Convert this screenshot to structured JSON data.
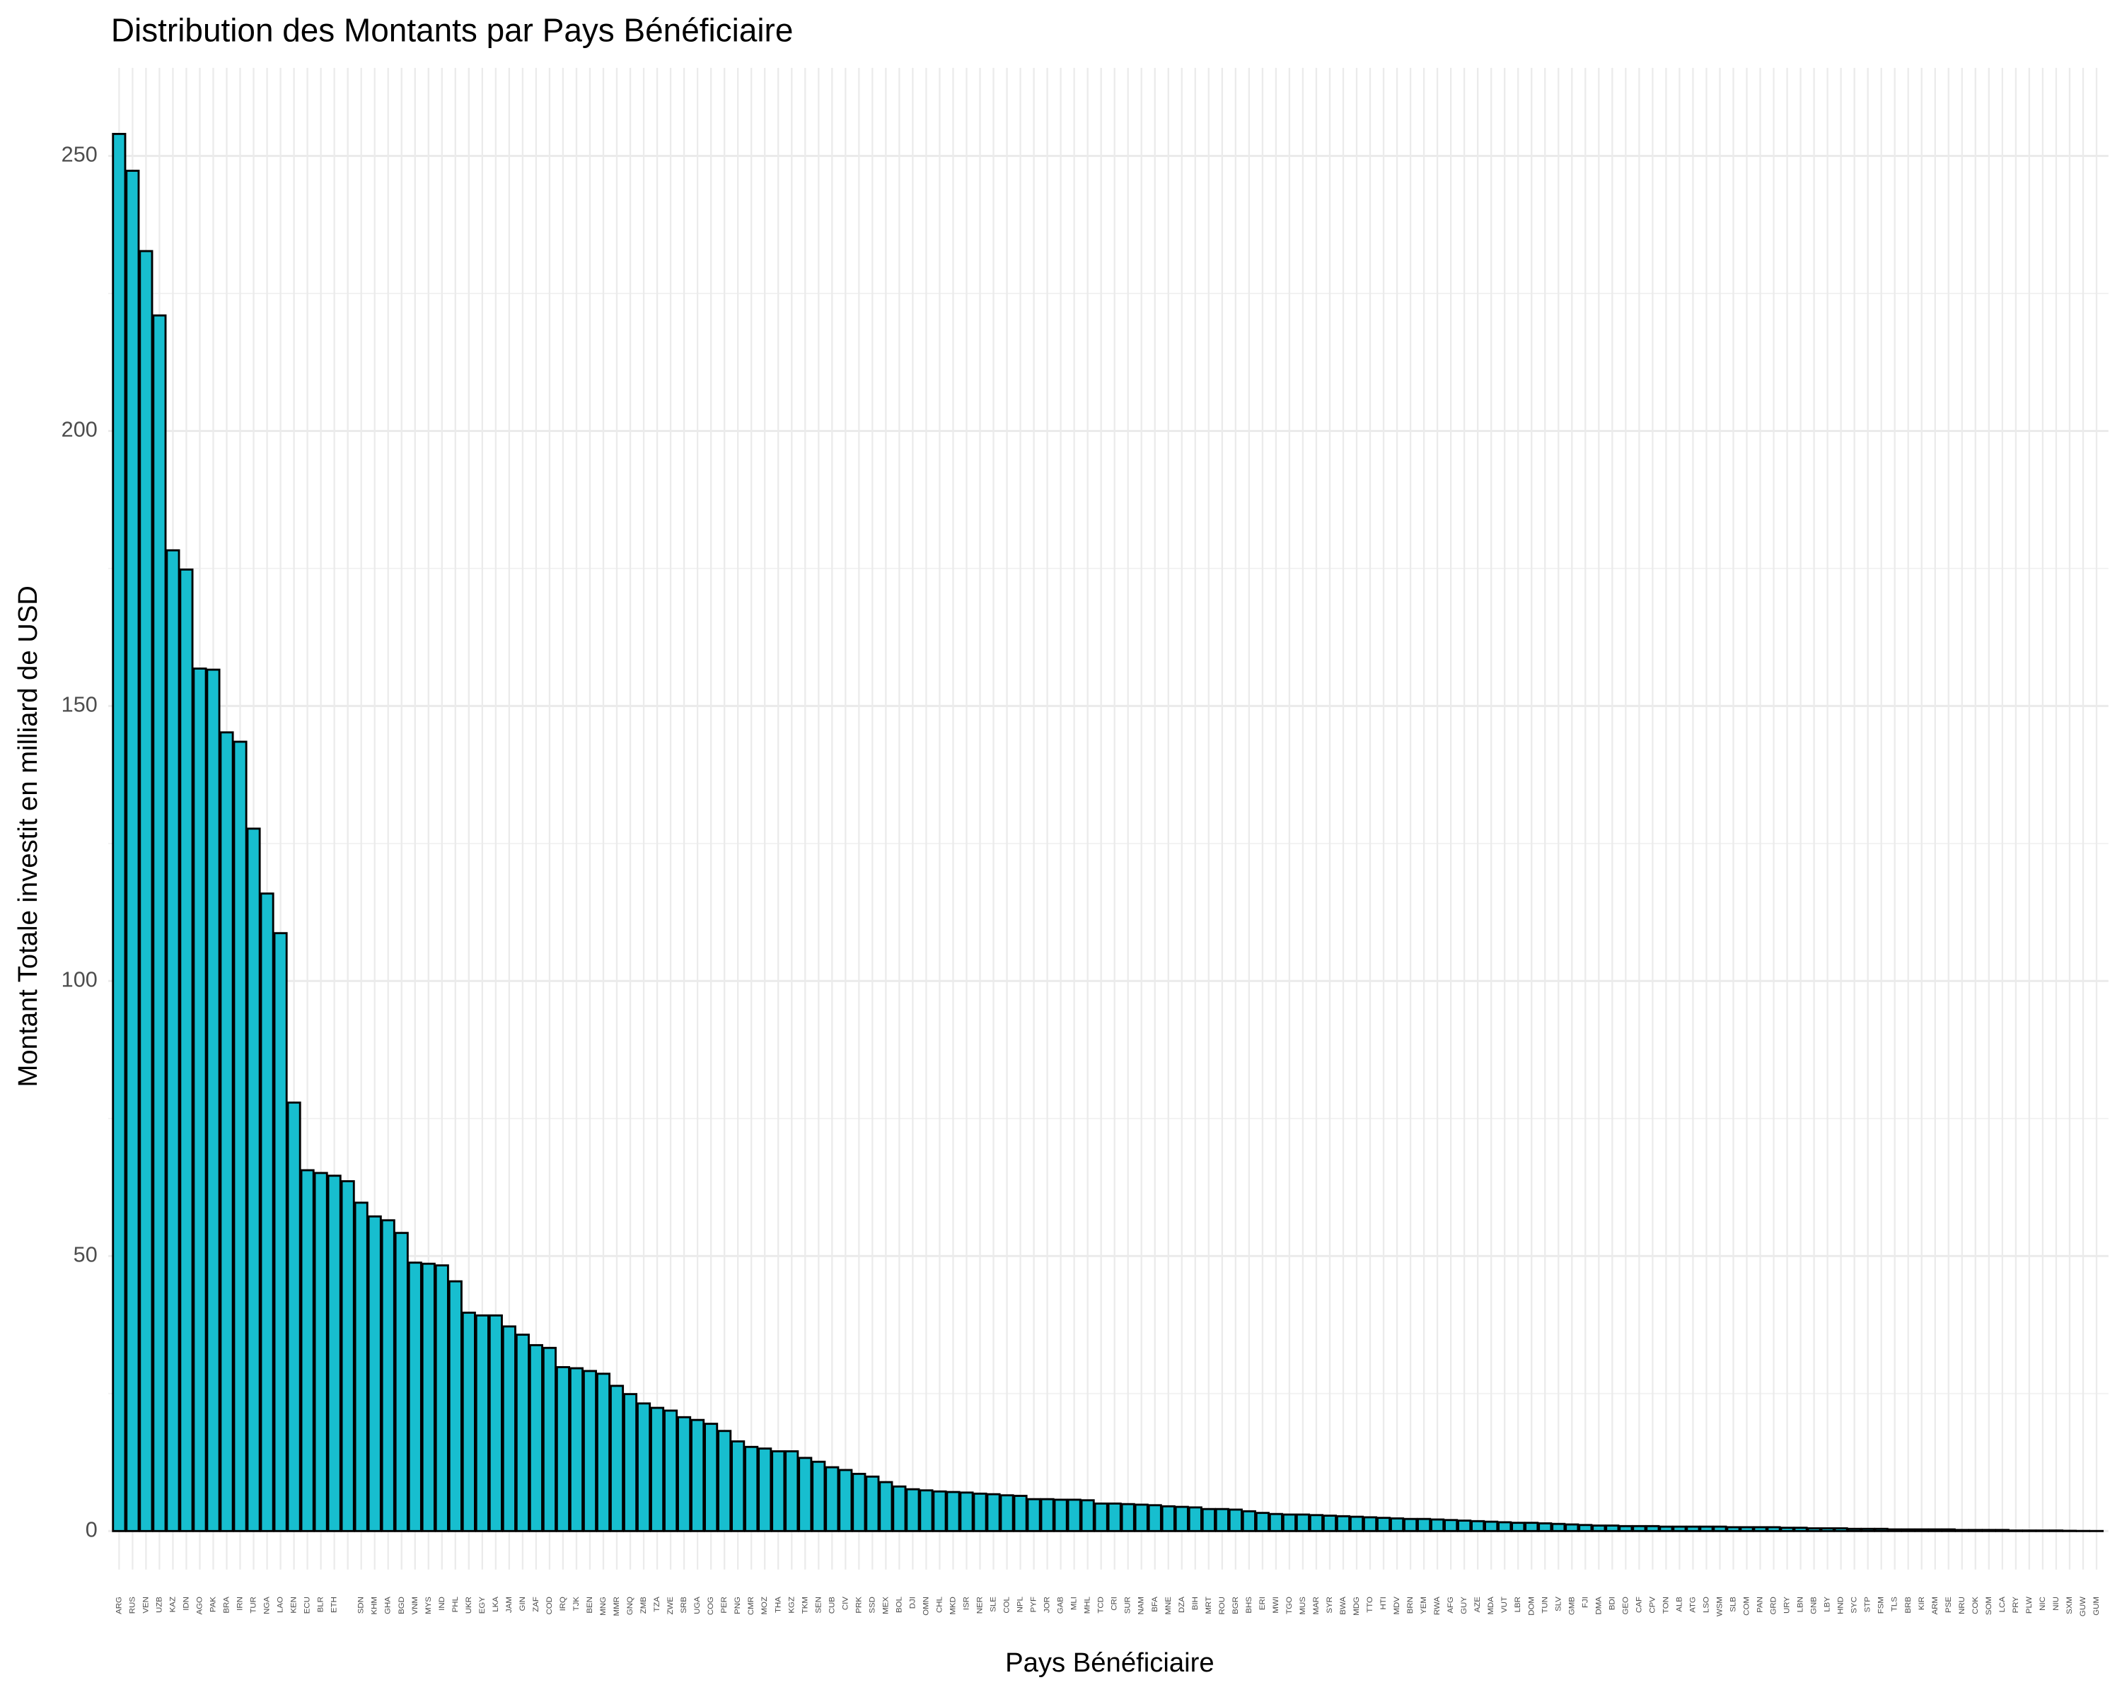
{
  "chart_data": {
    "type": "bar",
    "title": "Distribution des Montants par Pays Bénéficiaire",
    "x_label": "Pays Bénéficiaire",
    "y_label": "Montant  Totale investit en milliard de USD",
    "categories": [
      "ARG",
      "RUS",
      "VEN",
      "UZB",
      "KAZ",
      "IDN",
      "AGO",
      "PAK",
      "BRA",
      "IRN",
      "TUR",
      "NGA",
      "LAO",
      "KEN",
      "ECU",
      "BLR",
      "ETH",
      null,
      "SDN",
      "KHM",
      "GHA",
      "BGD",
      "VNM",
      "MYS",
      "IND",
      "PHL",
      "UKR",
      "EGY",
      "LKA",
      "JAM",
      "GIN",
      "ZAF",
      "COD",
      "IRQ",
      "TJK",
      "BEN",
      "MNG",
      "MMR",
      "GNQ",
      "ZMB",
      "TZA",
      "ZWE",
      "SRB",
      "UGA",
      "COG",
      "PER",
      "PNG",
      "CMR",
      "MOZ",
      "THA",
      "KGZ",
      "TKM",
      "SEN",
      "CUB",
      "CIV",
      "PRK",
      "SSD",
      "MEX",
      "BOL",
      "DJI",
      "OMN",
      "CHL",
      "MKD",
      "ISR",
      "NER",
      "SLE",
      "COL",
      "NPL",
      "PYF",
      "JOR",
      "GAB",
      "MLI",
      "MHL",
      "TCD",
      "CRI",
      "SUR",
      "NAM",
      "BFA",
      "MNE",
      "DZA",
      "BIH",
      "MRT",
      "ROU",
      "BGR",
      "BHS",
      "ERI",
      "MWI",
      "TGO",
      "MUS",
      "MAR",
      "SYR",
      "BWA",
      "MDG",
      "TTO",
      "HTI",
      "MDV",
      "BRN",
      "YEM",
      "RWA",
      "AFG",
      "GUY",
      "AZE",
      "MDA",
      "VUT",
      "LBR",
      "DOM",
      "TUN",
      "SLV",
      "GMB",
      "FJI",
      "DMA",
      "BDI",
      "GEO",
      "CAF",
      "CPV",
      "TON",
      "ALB",
      "ATG",
      "LSO",
      "WSM",
      "SLB",
      "COM",
      "PAN",
      "GRD",
      "URY",
      "LBN",
      "GNB",
      "LBY",
      "HND",
      "SYC",
      "STP",
      "FSM",
      "TLS",
      "BRB",
      "KIR",
      "ARM",
      "PSE",
      "NRU",
      "COK",
      "SOM",
      "LCA",
      "PRY",
      "PLW",
      "NIC",
      "NIU",
      "SXM",
      "GUW",
      "GUM"
    ],
    "values": [
      254,
      247.3,
      232.7,
      221,
      178.3,
      174.8,
      156.8,
      156.6,
      145.2,
      143.5,
      127.7,
      115.9,
      108.7,
      77.9,
      65.6,
      65.1,
      64.6,
      63.6,
      59.7,
      57.2,
      56.5,
      54.2,
      48.8,
      48.6,
      48.3,
      45.4,
      39.7,
      39.2,
      39.2,
      37.2,
      35.7,
      33.8,
      33.3,
      29.8,
      29.6,
      29.1,
      28.6,
      26.4,
      24.9,
      23.2,
      22.4,
      21.9,
      20.7,
      20.2,
      19.5,
      18.2,
      16.3,
      15.3,
      15.0,
      14.5,
      14.5,
      13.3,
      12.6,
      11.6,
      11.1,
      10.4,
      9.9,
      8.9,
      8.1,
      7.6,
      7.4,
      7.2,
      7.1,
      7.0,
      6.8,
      6.7,
      6.5,
      6.4,
      5.8,
      5.8,
      5.7,
      5.7,
      5.6,
      5.0,
      5.0,
      4.9,
      4.8,
      4.7,
      4.5,
      4.4,
      4.3,
      4.0,
      4.0,
      3.9,
      3.6,
      3.3,
      3.1,
      3.0,
      3.0,
      2.9,
      2.8,
      2.7,
      2.6,
      2.5,
      2.4,
      2.3,
      2.2,
      2.2,
      2.1,
      2.0,
      1.9,
      1.8,
      1.7,
      1.6,
      1.5,
      1.5,
      1.4,
      1.3,
      1.2,
      1.1,
      1.0,
      1.0,
      0.9,
      0.9,
      0.9,
      0.8,
      0.8,
      0.8,
      0.8,
      0.8,
      0.7,
      0.7,
      0.7,
      0.7,
      0.6,
      0.6,
      0.5,
      0.5,
      0.5,
      0.4,
      0.4,
      0.4,
      0.3,
      0.3,
      0.3,
      0.3,
      0.3,
      0.2,
      0.2,
      0.2,
      0.2,
      0.1,
      0.1,
      0.1,
      0.1,
      0.05,
      0.02,
      0.01
    ],
    "color": "#17becf",
    "ylim": [
      -7,
      266
    ],
    "yticks": [
      0,
      50,
      100,
      150,
      200,
      250
    ],
    "grid": true
  }
}
